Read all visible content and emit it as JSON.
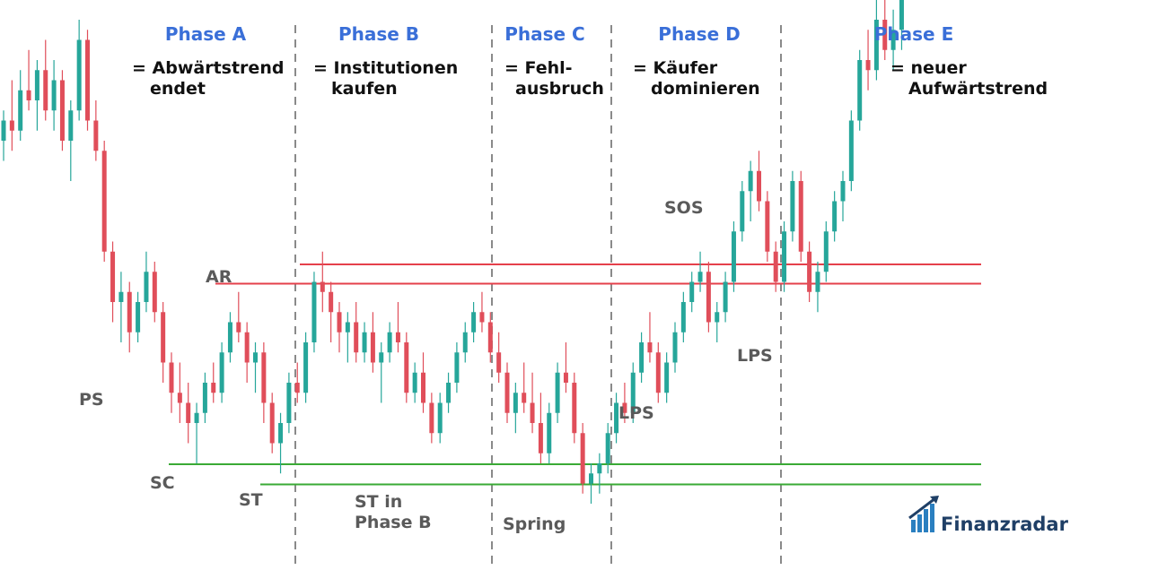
{
  "chart_data": {
    "type": "candlestick",
    "title": "",
    "xlabel": "",
    "ylabel": "",
    "grid": false,
    "colors": {
      "up": "#26a69a",
      "down": "#e04e5a",
      "resistance": "#e5404b",
      "support": "#3aaa35",
      "phase_divider": "#8a8a8a",
      "phase_title": "#3a6fd8"
    },
    "phases": [
      {
        "title": "Phase A",
        "desc": [
          "= Abwärtstrend",
          "endet"
        ]
      },
      {
        "title": "Phase B",
        "desc": [
          "= Institutionen",
          "kaufen"
        ]
      },
      {
        "title": "Phase C",
        "desc": [
          "= Fehl-",
          "ausbruch"
        ]
      },
      {
        "title": "Phase D",
        "desc": [
          "= Käufer",
          "dominieren"
        ]
      },
      {
        "title": "Phase E",
        "desc": [
          "= neuer",
          "Aufwärtstrend"
        ]
      }
    ],
    "annotations": [
      {
        "label": "PS",
        "lines": [
          "PS"
        ]
      },
      {
        "label": "SC",
        "lines": [
          "SC"
        ]
      },
      {
        "label": "AR",
        "lines": [
          "AR"
        ]
      },
      {
        "label": "ST",
        "lines": [
          "ST"
        ]
      },
      {
        "label": "ST in Phase B",
        "lines": [
          "ST in",
          "Phase B"
        ]
      },
      {
        "label": "Spring",
        "lines": [
          "Spring"
        ]
      },
      {
        "label": "LPS",
        "lines": [
          "LPS"
        ]
      },
      {
        "label": "SOS",
        "lines": [
          "SOS"
        ]
      },
      {
        "label": "LPS",
        "lines": [
          "LPS"
        ]
      }
    ],
    "levels": {
      "resistance_upper": 100,
      "resistance_lower": 98,
      "support_upper": 80,
      "support_lower": 78
    },
    "candles": [
      [
        112,
        115,
        110,
        114
      ],
      [
        114,
        118,
        111,
        113
      ],
      [
        113,
        119,
        112,
        117
      ],
      [
        117,
        121,
        115,
        116
      ],
      [
        116,
        120,
        113,
        119
      ],
      [
        119,
        122,
        114,
        115
      ],
      [
        115,
        120,
        113,
        118
      ],
      [
        118,
        119,
        111,
        112
      ],
      [
        112,
        116,
        108,
        115
      ],
      [
        115,
        124,
        114,
        122
      ],
      [
        122,
        123,
        113,
        114
      ],
      [
        114,
        116,
        110,
        111
      ],
      [
        111,
        112,
        100,
        101
      ],
      [
        101,
        102,
        94,
        96
      ],
      [
        96,
        99,
        92,
        97
      ],
      [
        97,
        98,
        91,
        93
      ],
      [
        93,
        97,
        92,
        96
      ],
      [
        96,
        101,
        95,
        99
      ],
      [
        99,
        100,
        94,
        95
      ],
      [
        95,
        96,
        88,
        90
      ],
      [
        90,
        91,
        85,
        87
      ],
      [
        87,
        90,
        84,
        86
      ],
      [
        86,
        88,
        82,
        84
      ],
      [
        84,
        86,
        80,
        85
      ],
      [
        85,
        89,
        84,
        88
      ],
      [
        88,
        90,
        86,
        87
      ],
      [
        87,
        92,
        86,
        91
      ],
      [
        91,
        95,
        90,
        94
      ],
      [
        94,
        97,
        92,
        93
      ],
      [
        93,
        94,
        88,
        90
      ],
      [
        90,
        92,
        87,
        91
      ],
      [
        91,
        92,
        84,
        86
      ],
      [
        86,
        87,
        81,
        82
      ],
      [
        82,
        85,
        79,
        84
      ],
      [
        84,
        89,
        83,
        88
      ],
      [
        88,
        90,
        86,
        87
      ],
      [
        87,
        93,
        86,
        92
      ],
      [
        92,
        99,
        91,
        98
      ],
      [
        98,
        101,
        95,
        97
      ],
      [
        97,
        98,
        92,
        95
      ],
      [
        95,
        96,
        91,
        93
      ],
      [
        93,
        95,
        90,
        94
      ],
      [
        94,
        96,
        90,
        91
      ],
      [
        91,
        94,
        90,
        93
      ],
      [
        93,
        95,
        89,
        90
      ],
      [
        90,
        92,
        86,
        91
      ],
      [
        91,
        94,
        90,
        93
      ],
      [
        93,
        96,
        91,
        92
      ],
      [
        92,
        93,
        86,
        87
      ],
      [
        87,
        90,
        86,
        89
      ],
      [
        89,
        91,
        85,
        86
      ],
      [
        86,
        87,
        82,
        83
      ],
      [
        83,
        87,
        82,
        86
      ],
      [
        86,
        89,
        85,
        88
      ],
      [
        88,
        92,
        87,
        91
      ],
      [
        91,
        94,
        90,
        93
      ],
      [
        93,
        96,
        92,
        95
      ],
      [
        95,
        97,
        93,
        94
      ],
      [
        94,
        95,
        90,
        91
      ],
      [
        91,
        93,
        88,
        89
      ],
      [
        89,
        90,
        84,
        85
      ],
      [
        85,
        88,
        83,
        87
      ],
      [
        87,
        90,
        85,
        86
      ],
      [
        86,
        89,
        83,
        84
      ],
      [
        84,
        87,
        80,
        81
      ],
      [
        81,
        86,
        80,
        85
      ],
      [
        85,
        90,
        84,
        89
      ],
      [
        89,
        92,
        87,
        88
      ],
      [
        88,
        89,
        82,
        83
      ],
      [
        83,
        84,
        77,
        78
      ],
      [
        78,
        80,
        76,
        79
      ],
      [
        79,
        81,
        77,
        80
      ],
      [
        80,
        84,
        79,
        83
      ],
      [
        83,
        87,
        82,
        86
      ],
      [
        86,
        88,
        84,
        85
      ],
      [
        85,
        90,
        84,
        89
      ],
      [
        89,
        93,
        88,
        92
      ],
      [
        92,
        95,
        90,
        91
      ],
      [
        91,
        92,
        86,
        87
      ],
      [
        87,
        91,
        86,
        90
      ],
      [
        90,
        94,
        89,
        93
      ],
      [
        93,
        97,
        92,
        96
      ],
      [
        96,
        99,
        95,
        98
      ],
      [
        98,
        101,
        97,
        99
      ],
      [
        99,
        100,
        93,
        94
      ],
      [
        94,
        96,
        92,
        95
      ],
      [
        95,
        99,
        94,
        98
      ],
      [
        98,
        104,
        97,
        103
      ],
      [
        103,
        108,
        102,
        107
      ],
      [
        107,
        110,
        104,
        109
      ],
      [
        109,
        111,
        105,
        106
      ],
      [
        106,
        107,
        100,
        101
      ],
      [
        101,
        102,
        97,
        98
      ],
      [
        98,
        104,
        97,
        103
      ],
      [
        103,
        109,
        102,
        108
      ],
      [
        108,
        109,
        100,
        101
      ],
      [
        101,
        102,
        96,
        97
      ],
      [
        97,
        100,
        95,
        99
      ],
      [
        99,
        104,
        98,
        103
      ],
      [
        103,
        107,
        102,
        106
      ],
      [
        106,
        109,
        104,
        108
      ],
      [
        108,
        115,
        107,
        114
      ],
      [
        114,
        121,
        113,
        120
      ],
      [
        120,
        123,
        117,
        119
      ],
      [
        119,
        126,
        118,
        124
      ],
      [
        124,
        128,
        120,
        121
      ],
      [
        121,
        125,
        119,
        123
      ],
      [
        123,
        128,
        121,
        127
      ]
    ]
  },
  "brand": {
    "name": "Finanzradar",
    "icon": "bar-chart-arrow-icon"
  }
}
